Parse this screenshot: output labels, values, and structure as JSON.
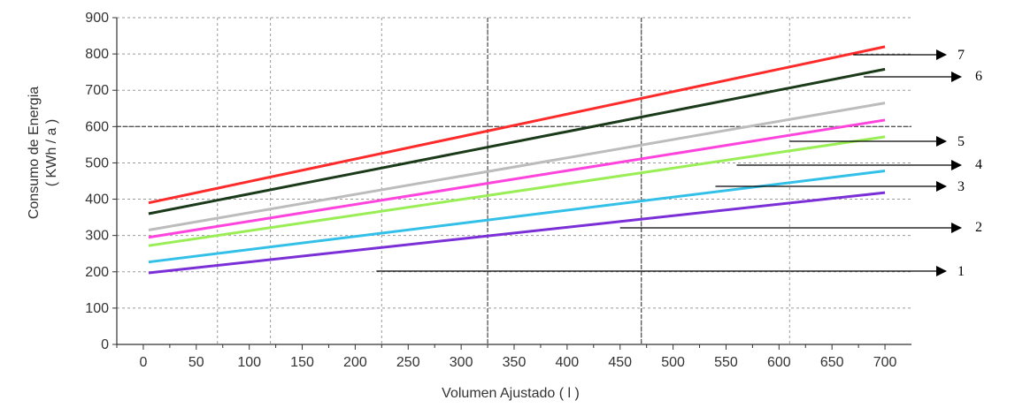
{
  "chart_data": {
    "type": "line",
    "xlabel": "Volumen Ajustado ( l )",
    "ylabel_line1": "Consumo de Energia",
    "ylabel_line2": "( KWh / a )",
    "xlim": [
      -25,
      725
    ],
    "ylim": [
      0,
      900
    ],
    "x_ticks": [
      0,
      50,
      100,
      150,
      200,
      250,
      300,
      350,
      400,
      450,
      500,
      550,
      600,
      650,
      700
    ],
    "y_ticks": [
      0,
      100,
      200,
      300,
      400,
      500,
      600,
      700,
      800,
      900
    ],
    "grid": true,
    "dashed_vlines": [
      70,
      120,
      225,
      325,
      470,
      610
    ],
    "dashed_hlines": [
      100,
      200,
      300,
      400,
      500,
      600,
      700,
      800,
      900
    ],
    "solid_vlines": [
      325,
      470
    ],
    "solid_hlines": [
      600
    ],
    "series": [
      {
        "label": "1",
        "color": "#7b2fd6",
        "x": [
          5,
          700
        ],
        "y": [
          197,
          418
        ],
        "callout_x": 220,
        "callout_y": 270
      },
      {
        "label": "2",
        "color": "#33c0e8",
        "x": [
          5,
          700
        ],
        "y": [
          227,
          478
        ],
        "callout_x": 450,
        "callout_y": 390
      },
      {
        "label": "3",
        "color": "#99ee55",
        "x": [
          5,
          700
        ],
        "y": [
          272,
          572
        ],
        "callout_x": 540,
        "callout_y": 505
      },
      {
        "label": "4",
        "color": "#ff44dd",
        "x": [
          5,
          700
        ],
        "y": [
          295,
          618
        ],
        "callout_x": 560,
        "callout_y": 565
      },
      {
        "label": "5",
        "color": "#bcbcbc",
        "x": [
          5,
          700
        ],
        "y": [
          315,
          665
        ],
        "callout_x": 610,
        "callout_y": 625
      },
      {
        "label": "6",
        "color": "#1a3a1a",
        "x": [
          5,
          700
        ],
        "y": [
          360,
          758
        ],
        "callout_x": 680,
        "callout_y": 745
      },
      {
        "label": "7",
        "color": "#ff2a2a",
        "x": [
          5,
          700
        ],
        "y": [
          390,
          820
        ],
        "callout_x": 670,
        "callout_y": 800
      }
    ]
  }
}
